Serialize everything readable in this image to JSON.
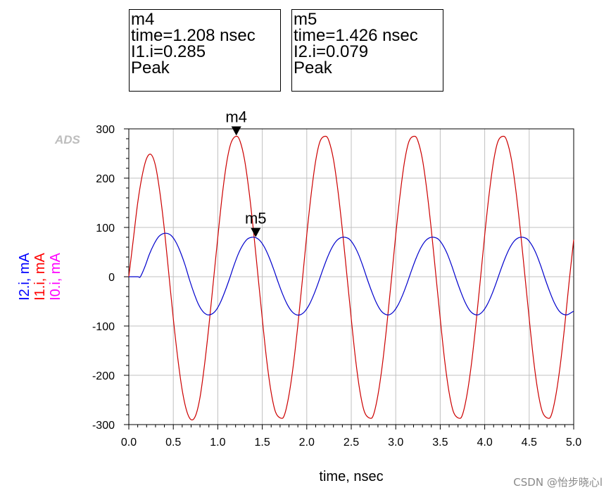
{
  "markers": [
    {
      "name": "m4",
      "line1": "time=1.208 nsec",
      "line2": "I1.i=0.285",
      "line3": "Peak"
    },
    {
      "name": "m5",
      "line1": "time=1.426 nsec",
      "line2": "I2.i=0.079",
      "line3": "Peak"
    }
  ],
  "logo": "ADS",
  "watermark": "CSDN @怡步晓心l",
  "chart_data": {
    "type": "line",
    "xlabel": "time, nsec",
    "ylabel_parts": [
      {
        "text": "I2.i, mA",
        "color": "#0000ff"
      },
      {
        "text": "I1.i, mA",
        "color": "#ff0000"
      },
      {
        "text": "I0.i, mA",
        "color": "#ff00ff"
      }
    ],
    "xlim": [
      0,
      5
    ],
    "ylim": [
      -300,
      300
    ],
    "xticks": [
      "0.0",
      "0.5",
      "1.0",
      "1.5",
      "2.0",
      "2.5",
      "3.0",
      "3.5",
      "4.0",
      "4.5",
      "5.0"
    ],
    "yticks": [
      "300",
      "200",
      "100",
      "0",
      "-100",
      "-200",
      "-300"
    ],
    "grid": true,
    "series": [
      {
        "name": "I1.i",
        "color": "#cc0000",
        "x": [
          0.0,
          0.05,
          0.1,
          0.15,
          0.2,
          0.25,
          0.3,
          0.35,
          0.4,
          0.45,
          0.5,
          0.55,
          0.6,
          0.65,
          0.7,
          0.75,
          0.8,
          0.85,
          0.9,
          0.95,
          1.0,
          1.05,
          1.1,
          1.15,
          1.208,
          1.25,
          1.3,
          1.35,
          1.4,
          1.45,
          1.5,
          1.55,
          1.6,
          1.65,
          1.71,
          1.75,
          1.8,
          1.85,
          1.9,
          1.95,
          2.0,
          2.05,
          2.1,
          2.15,
          2.21,
          2.25,
          2.3,
          2.35,
          2.4,
          2.45,
          2.5,
          2.55,
          2.6,
          2.65,
          2.71,
          2.75,
          2.8,
          2.85,
          2.9,
          2.95,
          3.0,
          3.05,
          3.1,
          3.15,
          3.21,
          3.25,
          3.3,
          3.35,
          3.4,
          3.45,
          3.5,
          3.55,
          3.6,
          3.65,
          3.71,
          3.75,
          3.8,
          3.85,
          3.9,
          3.95,
          4.0,
          4.05,
          4.1,
          4.15,
          4.21,
          4.25,
          4.3,
          4.35,
          4.4,
          4.45,
          4.5,
          4.55,
          4.6,
          4.65,
          4.71,
          4.75,
          4.8,
          4.85,
          4.9,
          4.95,
          5.0
        ],
        "values": [
          0,
          75,
          150,
          205,
          240,
          248,
          225,
          170,
          95,
          5,
          -85,
          -165,
          -230,
          -272,
          -290,
          -282,
          -245,
          -180,
          -100,
          -10,
          80,
          165,
          232,
          272,
          285,
          275,
          238,
          175,
          95,
          5,
          -85,
          -170,
          -235,
          -275,
          -287,
          -280,
          -240,
          -178,
          -98,
          -8,
          85,
          168,
          235,
          275,
          285,
          275,
          238,
          175,
          95,
          5,
          -85,
          -170,
          -235,
          -275,
          -287,
          -280,
          -240,
          -178,
          -98,
          -8,
          85,
          168,
          235,
          275,
          285,
          275,
          238,
          175,
          95,
          5,
          -85,
          -170,
          -235,
          -275,
          -287,
          -280,
          -240,
          -178,
          -98,
          -8,
          85,
          168,
          235,
          275,
          285,
          275,
          238,
          175,
          95,
          5,
          -85,
          -170,
          -235,
          -275,
          -287,
          -280,
          -240,
          -178,
          -98,
          -8,
          75
        ]
      },
      {
        "name": "I2.i",
        "color": "#0000cc",
        "x": [
          0.0,
          0.1,
          0.13,
          0.18,
          0.23,
          0.28,
          0.33,
          0.38,
          0.43,
          0.48,
          0.53,
          0.58,
          0.63,
          0.68,
          0.73,
          0.78,
          0.83,
          0.88,
          0.93,
          0.98,
          1.03,
          1.08,
          1.13,
          1.18,
          1.23,
          1.28,
          1.33,
          1.38,
          1.43,
          1.48,
          1.53,
          1.58,
          1.63,
          1.68,
          1.73,
          1.78,
          1.83,
          1.88,
          1.93,
          1.98,
          2.03,
          2.08,
          2.13,
          2.18,
          2.23,
          2.28,
          2.33,
          2.38,
          2.43,
          2.48,
          2.53,
          2.58,
          2.63,
          2.68,
          2.73,
          2.78,
          2.83,
          2.88,
          2.93,
          2.98,
          3.03,
          3.08,
          3.13,
          3.18,
          3.23,
          3.28,
          3.33,
          3.38,
          3.43,
          3.48,
          3.53,
          3.58,
          3.63,
          3.68,
          3.73,
          3.78,
          3.83,
          3.88,
          3.93,
          3.98,
          4.03,
          4.08,
          4.13,
          4.18,
          4.23,
          4.28,
          4.33,
          4.38,
          4.43,
          4.48,
          4.53,
          4.58,
          4.63,
          4.68,
          4.73,
          4.78,
          4.83,
          4.88,
          4.93,
          4.98,
          5.0
        ],
        "values": [
          0,
          0,
          0,
          20,
          45,
          65,
          80,
          87,
          88,
          83,
          70,
          50,
          25,
          -5,
          -32,
          -55,
          -70,
          -77,
          -76,
          -68,
          -52,
          -30,
          -5,
          22,
          46,
          64,
          76,
          80,
          79,
          72,
          58,
          38,
          14,
          -12,
          -36,
          -56,
          -70,
          -77,
          -77,
          -70,
          -56,
          -36,
          -12,
          14,
          38,
          58,
          72,
          79,
          80,
          76,
          64,
          46,
          22,
          -5,
          -30,
          -52,
          -68,
          -76,
          -77,
          -70,
          -56,
          -36,
          -12,
          14,
          38,
          58,
          72,
          79,
          80,
          76,
          64,
          46,
          22,
          -5,
          -30,
          -52,
          -68,
          -76,
          -77,
          -70,
          -56,
          -36,
          -12,
          14,
          38,
          58,
          72,
          79,
          80,
          76,
          64,
          46,
          22,
          -5,
          -30,
          -52,
          -68,
          -76,
          -77,
          -72,
          -70
        ]
      }
    ],
    "annotations": [
      {
        "label": "m4",
        "x": 1.208,
        "y": 285
      },
      {
        "label": "m5",
        "x": 1.426,
        "y": 79
      }
    ]
  }
}
